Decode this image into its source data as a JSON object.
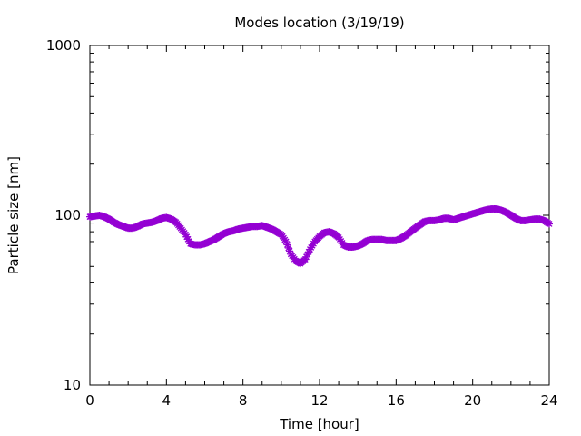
{
  "chart_data": {
    "type": "scatter",
    "title": "Modes location (3/19/19)",
    "xlabel": "Time [hour]",
    "ylabel": "Particle size [nm]",
    "xlim": [
      0,
      24
    ],
    "ylim": [
      10,
      1000
    ],
    "yscale": "log",
    "x_ticks": [
      0,
      4,
      8,
      12,
      16,
      20,
      24
    ],
    "x_tick_labels": [
      "0",
      "4",
      "8",
      "12",
      "16",
      "20",
      "24"
    ],
    "y_ticks": [
      10,
      100,
      1000
    ],
    "y_tick_labels": [
      "10",
      "100",
      "1000"
    ],
    "grid": false,
    "marker": "star",
    "color": "#9400d3",
    "series": [
      {
        "x": [
          0.0,
          0.25,
          0.5,
          0.75,
          1.0,
          1.25,
          1.5,
          1.75,
          2.0,
          2.25,
          2.5,
          2.75,
          3.0,
          3.25,
          3.5,
          3.75,
          4.0,
          4.25,
          4.5,
          4.75,
          5.0,
          5.25,
          5.5,
          5.75,
          6.0,
          6.25,
          6.5,
          6.75,
          7.0,
          7.25,
          7.5,
          7.75,
          8.0,
          8.25,
          8.5,
          8.75,
          9.0,
          9.25,
          9.5,
          9.75,
          10.0,
          10.25,
          10.5,
          10.75,
          11.0,
          11.25,
          11.5,
          11.75,
          12.0,
          12.25,
          12.5,
          12.75,
          13.0,
          13.25,
          13.5,
          13.75,
          14.0,
          14.25,
          14.5,
          14.75,
          15.0,
          15.25,
          15.5,
          15.75,
          16.0,
          16.25,
          16.5,
          16.75,
          17.0,
          17.25,
          17.5,
          17.75,
          18.0,
          18.25,
          18.5,
          18.75,
          19.0,
          19.25,
          19.5,
          19.75,
          20.0,
          20.25,
          20.5,
          20.75,
          21.0,
          21.25,
          21.5,
          21.75,
          22.0,
          22.25,
          22.5,
          22.75,
          23.0,
          23.25,
          23.5,
          23.75,
          24.0
        ],
        "y": [
          98,
          99,
          100,
          98,
          95,
          91,
          88,
          86,
          84,
          84,
          86,
          89,
          90,
          91,
          93,
          96,
          97,
          95,
          91,
          84,
          77,
          68,
          67,
          67,
          68,
          70,
          72,
          75,
          78,
          80,
          81,
          83,
          84,
          85,
          86,
          86,
          87,
          85,
          83,
          80,
          77,
          70,
          59,
          54,
          52,
          55,
          63,
          70,
          75,
          79,
          80,
          78,
          74,
          67,
          65,
          65,
          66,
          68,
          71,
          72,
          72,
          72,
          71,
          71,
          71,
          73,
          76,
          80,
          84,
          88,
          92,
          93,
          93,
          94,
          96,
          96,
          94,
          96,
          98,
          100,
          102,
          104,
          106,
          108,
          109,
          109,
          107,
          104,
          100,
          96,
          93,
          93,
          94,
          95,
          95,
          93,
          89
        ]
      }
    ]
  }
}
